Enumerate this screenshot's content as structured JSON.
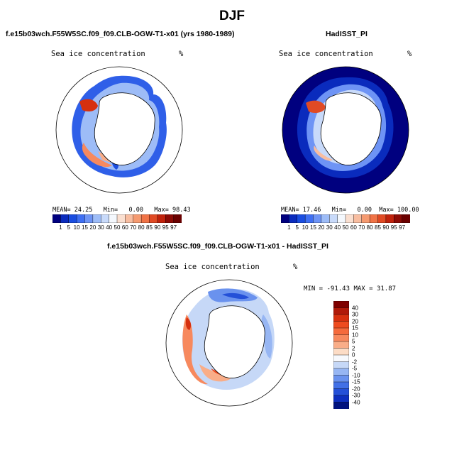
{
  "title": "DJF",
  "panel_left": {
    "title": "f.e15b03wch.F55W5SC.f09_f09.CLB-OGW-T1-x01 (yrs 1980-1989)",
    "field": "Sea ice concentration",
    "units": "%",
    "mean_label": "MEAN=",
    "mean": "24.25",
    "min_label": "Min=",
    "min": "0.00",
    "max_label": "Max=",
    "max": "98.43"
  },
  "panel_right": {
    "title": "HadISST_PI",
    "field": "Sea ice concentration",
    "units": "%",
    "mean_label": "MEAN=",
    "mean": "17.46",
    "min_label": "Min=",
    "min": "0.00",
    "max_label": "Max=",
    "max": "100.00"
  },
  "panel_diff": {
    "title": "f.e15b03wch.F55W5SC.f09_f09.CLB-OGW-T1-x01 - HadISST_PI",
    "field": "Sea ice concentration",
    "units": "%",
    "minmax": "MIN = -91.43  MAX =  31.87"
  },
  "colorbar_abs": {
    "labels": [
      "1",
      "5",
      "10",
      "15",
      "20",
      "30",
      "40",
      "50",
      "60",
      "70",
      "80",
      "85",
      "90",
      "95",
      "97"
    ],
    "colors": [
      "#00007f",
      "#0a2bbd",
      "#1a4de0",
      "#3f6ff2",
      "#6e94f5",
      "#9dbcf7",
      "#c8dafa",
      "#f4f8fd",
      "#fadfd0",
      "#f8bda0",
      "#f59a70",
      "#f07346",
      "#e04a24",
      "#c0220c",
      "#8c0a05",
      "#6a0000"
    ]
  },
  "colorbar_diff": {
    "labels": [
      "40",
      "30",
      "20",
      "15",
      "10",
      "5",
      "2",
      "0",
      "-2",
      "-5",
      "-10",
      "-15",
      "-20",
      "-30",
      "-40"
    ],
    "colors": [
      "#7f0000",
      "#b01a0a",
      "#d6300f",
      "#ee4b1f",
      "#f56a3c",
      "#f7895e",
      "#f9ad88",
      "#fcdcc6",
      "#f7f9fd",
      "#c6d8f7",
      "#97b6f3",
      "#6a92ee",
      "#4270e6",
      "#2450d8",
      "#0d2fbf",
      "#00127f"
    ]
  }
}
